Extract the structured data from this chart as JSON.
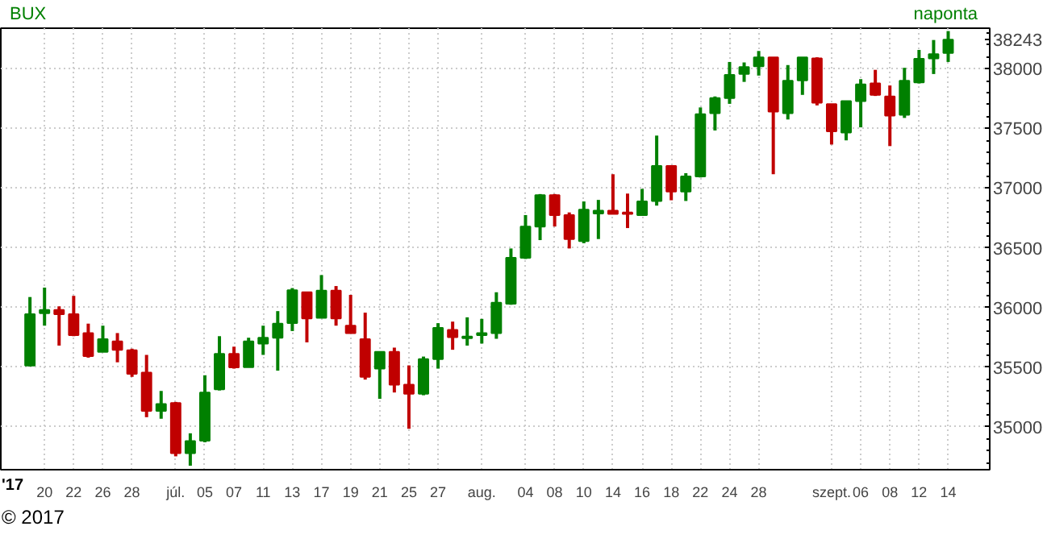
{
  "chart_data": {
    "type": "candlestick",
    "title": "BUX",
    "subtitle": "naponta",
    "xlabel": "'17",
    "categories": [
      null,
      "20",
      null,
      "22",
      null,
      "26",
      null,
      "28",
      null,
      null,
      "júl.",
      null,
      "05",
      null,
      "07",
      null,
      "11",
      null,
      "13",
      null,
      "17",
      null,
      "19",
      null,
      "21",
      null,
      "25",
      null,
      "27",
      null,
      null,
      "aug.",
      null,
      null,
      "04",
      null,
      "08",
      null,
      "10",
      null,
      "14",
      null,
      "16",
      null,
      "18",
      null,
      "22",
      null,
      "24",
      null,
      "28",
      null,
      null,
      null,
      null,
      "szept.",
      null,
      "06",
      null,
      "08",
      null,
      "12",
      null,
      "14"
    ],
    "ohlc": [
      [
        35513,
        36087,
        35505,
        35943
      ],
      [
        35952,
        36166,
        35847,
        35978
      ],
      [
        35978,
        36009,
        35680,
        35943
      ],
      [
        35943,
        36097,
        35759,
        35768
      ],
      [
        35785,
        35864,
        35579,
        35592
      ],
      [
        35628,
        35847,
        35628,
        35733
      ],
      [
        35716,
        35785,
        35540,
        35645
      ],
      [
        35641,
        35654,
        35418,
        35444
      ],
      [
        35453,
        35602,
        35080,
        35133
      ],
      [
        35133,
        35300,
        35067,
        35191
      ],
      [
        35199,
        35208,
        34752,
        34778
      ],
      [
        34778,
        34945,
        34673,
        34879
      ],
      [
        34883,
        35431,
        34870,
        35287
      ],
      [
        35313,
        35759,
        35304,
        35611
      ],
      [
        35611,
        35671,
        35487,
        35497
      ],
      [
        35500,
        35746,
        35500,
        35716
      ],
      [
        35697,
        35847,
        35602,
        35746
      ],
      [
        35746,
        35969,
        35470,
        35864
      ],
      [
        35868,
        36162,
        35802,
        36144
      ],
      [
        36127,
        36127,
        35707,
        35907
      ],
      [
        35913,
        36271,
        35913,
        36140
      ],
      [
        36140,
        36179,
        35847,
        35907
      ],
      [
        35847,
        36105,
        35785,
        35785
      ],
      [
        35733,
        35956,
        35395,
        35418
      ],
      [
        35487,
        35628,
        35234,
        35628
      ],
      [
        35628,
        35663,
        35287,
        35352
      ],
      [
        35352,
        35514,
        34983,
        35277
      ],
      [
        35277,
        35588,
        35264,
        35566
      ],
      [
        35566,
        35868,
        35487,
        35829
      ],
      [
        35812,
        35881,
        35645,
        35750
      ],
      [
        35742,
        35917,
        35680,
        35755
      ],
      [
        35768,
        35904,
        35697,
        35785
      ],
      [
        35785,
        36127,
        35737,
        36039
      ],
      [
        36031,
        36494,
        36022,
        36416
      ],
      [
        36416,
        36774,
        36406,
        36678
      ],
      [
        36678,
        36950,
        36564,
        36941
      ],
      [
        36941,
        36950,
        36678,
        36774
      ],
      [
        36774,
        36796,
        36494,
        36573
      ],
      [
        36556,
        36888,
        36538,
        36819
      ],
      [
        36787,
        36901,
        36573,
        36810
      ],
      [
        36810,
        37116,
        36783,
        36783
      ],
      [
        36796,
        36954,
        36665,
        36783
      ],
      [
        36774,
        36993,
        36774,
        36888
      ],
      [
        36892,
        37440,
        36853,
        37186
      ],
      [
        37186,
        37186,
        36898,
        36971
      ],
      [
        36971,
        37125,
        36892,
        37098
      ],
      [
        37098,
        37676,
        37089,
        37620
      ],
      [
        37628,
        37768,
        37483,
        37755
      ],
      [
        37755,
        38057,
        37706,
        37948
      ],
      [
        37956,
        38053,
        37890,
        38014
      ],
      [
        38021,
        38149,
        37943,
        38096
      ],
      [
        38096,
        38096,
        37116,
        37641
      ],
      [
        37628,
        38031,
        37575,
        37899
      ],
      [
        37903,
        38096,
        37781,
        38096
      ],
      [
        38087,
        38096,
        37693,
        37716
      ],
      [
        37703,
        37703,
        37365,
        37475
      ],
      [
        37466,
        37729,
        37400,
        37729
      ],
      [
        37729,
        37913,
        37509,
        37869
      ],
      [
        37877,
        37991,
        37772,
        37781
      ],
      [
        37768,
        37860,
        37352,
        37607
      ],
      [
        37614,
        38008,
        37588,
        37899
      ],
      [
        37886,
        38158,
        37877,
        38083
      ],
      [
        38087,
        38241,
        37956,
        38123
      ],
      [
        38132,
        38316,
        38057,
        38243
      ]
    ],
    "colors": [
      "#008000",
      "#008000",
      "#c00000",
      "#c00000",
      "#c00000",
      "#008000",
      "#c00000",
      "#c00000",
      "#c00000",
      "#008000",
      "#c00000",
      "#008000",
      "#008000",
      "#008000",
      "#c00000",
      "#008000",
      "#008000",
      "#008000",
      "#008000",
      "#c00000",
      "#008000",
      "#c00000",
      "#c00000",
      "#c00000",
      "#008000",
      "#c00000",
      "#c00000",
      "#008000",
      "#008000",
      "#c00000",
      "#008000",
      "#008000",
      "#008000",
      "#008000",
      "#008000",
      "#008000",
      "#c00000",
      "#c00000",
      "#008000",
      "#008000",
      "#c00000",
      "#c00000",
      "#008000",
      "#008000",
      "#c00000",
      "#008000",
      "#008000",
      "#008000",
      "#008000",
      "#008000",
      "#008000",
      "#c00000",
      "#008000",
      "#008000",
      "#c00000",
      "#c00000",
      "#008000",
      "#008000",
      "#c00000",
      "#c00000",
      "#008000",
      "#008000",
      "#008000",
      "#008000"
    ],
    "ylim": [
      34640,
      38340
    ],
    "yticks": [
      35000,
      35500,
      36000,
      36500,
      37000,
      37500,
      38000,
      {
        "value": 38243,
        "label": "38243"
      }
    ],
    "grid": true,
    "annotations": [
      "© 2017"
    ]
  }
}
